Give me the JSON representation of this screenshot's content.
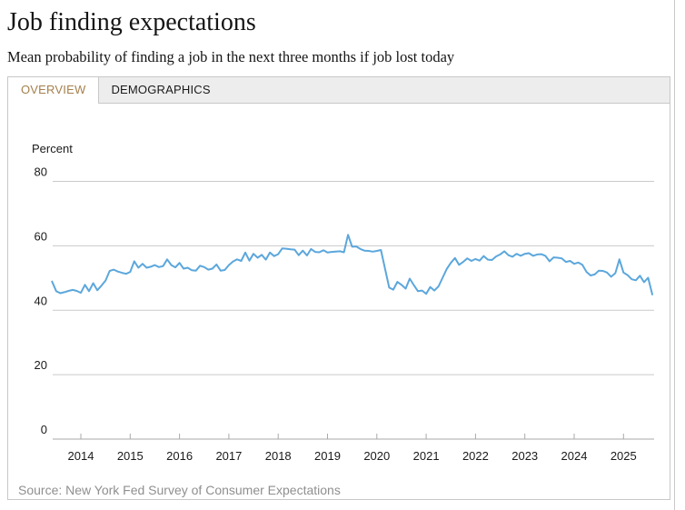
{
  "header": {
    "title": "Job finding expectations",
    "subtitle": "Mean probability of finding a job in the next three months if job lost today"
  },
  "tabs": [
    {
      "label": "OVERVIEW",
      "active": true
    },
    {
      "label": "DEMOGRAPHICS",
      "active": false
    }
  ],
  "colors": {
    "line": "#5ca7dc",
    "gridline": "#cacaca",
    "axis": "#a9a9a9",
    "tick_label": "#1a1a1a",
    "active_tab_text": "#a5804c"
  },
  "chart_data": {
    "type": "line",
    "title": "Job finding expectations",
    "xlabel": "",
    "ylabel": "Percent",
    "ylim": [
      0,
      80
    ],
    "grid": true,
    "legend": "none",
    "y_ticks": [
      0,
      20,
      40,
      60,
      80
    ],
    "x_tick_years": [
      2014,
      2015,
      2016,
      2017,
      2018,
      2019,
      2020,
      2021,
      2022,
      2023,
      2024,
      2025
    ],
    "source": "Source: New York Fed Survey of Consumer Expectations",
    "series": [
      {
        "name": "Mean probability of finding a job in the next three months if job lost today",
        "frequency": "monthly",
        "start": "2013-06",
        "end": "2025-08",
        "values": [
          48.9,
          45.9,
          45.3,
          45.6,
          46.0,
          46.3,
          46.0,
          45.4,
          47.9,
          45.9,
          48.4,
          46.2,
          47.6,
          49.2,
          52.2,
          52.6,
          52.0,
          51.6,
          51.3,
          51.9,
          55.2,
          53.2,
          54.4,
          53.2,
          53.5,
          54.0,
          53.4,
          53.7,
          55.8,
          54.0,
          53.3,
          54.7,
          52.9,
          53.2,
          52.4,
          52.3,
          53.8,
          53.4,
          52.6,
          52.9,
          54.2,
          52.3,
          52.5,
          54.0,
          55.1,
          55.8,
          55.3,
          57.9,
          55.4,
          57.5,
          56.3,
          57.2,
          55.7,
          57.9,
          56.8,
          57.4,
          59.2,
          59.1,
          58.9,
          58.8,
          57.1,
          58.5,
          57.0,
          59.0,
          58.1,
          58.0,
          58.6,
          57.9,
          58.1,
          58.2,
          58.3,
          58.0,
          63.4,
          59.7,
          59.8,
          59.0,
          58.5,
          58.4,
          58.2,
          58.4,
          58.7,
          52.9,
          47.0,
          46.4,
          48.8,
          47.9,
          46.7,
          49.8,
          47.8,
          45.9,
          46.1,
          45.1,
          47.2,
          46.1,
          47.4,
          50.1,
          52.8,
          54.7,
          56.2,
          54.1,
          55.0,
          56.1,
          55.3,
          55.9,
          55.4,
          56.8,
          55.7,
          55.6,
          56.7,
          57.3,
          58.3,
          57.1,
          56.6,
          57.5,
          56.9,
          57.5,
          57.7,
          56.9,
          57.3,
          57.4,
          56.9,
          55.2,
          56.4,
          56.3,
          56.1,
          55.0,
          55.3,
          54.4,
          54.8,
          54.1,
          51.9,
          50.8,
          51.1,
          52.3,
          52.2,
          51.7,
          50.4,
          51.5,
          55.8,
          51.7,
          50.9,
          49.6,
          49.3,
          50.7,
          48.7,
          50.1,
          44.9
        ]
      }
    ]
  }
}
